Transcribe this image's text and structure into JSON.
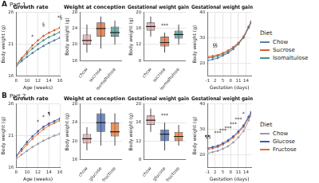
{
  "rows": [
    {
      "label": "A",
      "title": "Part 1",
      "legend_title": "Diet"
    },
    {
      "label": "B",
      "title": "Part 2",
      "legend_title": "Diet"
    }
  ],
  "chart_data": [
    {
      "type": "line",
      "title": "Growth rate",
      "x_label": "Age (weeks)",
      "y_label": "Body weight (g)",
      "x": [
        8,
        9,
        10,
        11,
        12,
        13,
        14,
        15,
        16
      ],
      "xlim": [
        8,
        16
      ],
      "xticks": [
        8,
        10,
        12,
        14,
        16
      ],
      "ylim": [
        16,
        26
      ],
      "yticks": [
        16,
        21,
        26
      ],
      "grid": true,
      "series": [
        {
          "name": "Chow",
          "color": "#5b7fa0",
          "values": [
            17.5,
            18.3,
            19,
            19.6,
            20.2,
            20.7,
            21.2,
            21.6,
            22
          ]
        },
        {
          "name": "Sucrose",
          "color": "#d9622b",
          "values": [
            17.8,
            18.8,
            19.8,
            20.8,
            21.6,
            22.3,
            22.8,
            23.2,
            23.6
          ]
        },
        {
          "name": "Isomaltulose",
          "color": "#4a8f8a",
          "values": [
            17.6,
            18.6,
            19.5,
            20.3,
            21,
            21.6,
            22.1,
            22.5,
            22.9
          ]
        }
      ],
      "annotations": [
        {
          "x": 11,
          "y": 21.8,
          "text": "*"
        },
        {
          "x": 13,
          "y": 23.6,
          "text": "§"
        },
        {
          "x": 16,
          "y": 24.8,
          "text": "*§"
        }
      ]
    },
    {
      "type": "box",
      "title": "Weight at conception",
      "y_label": "Body weight (g)",
      "categories": [
        "chow",
        "sucrose",
        "isomaltulose"
      ],
      "colors": [
        "#e3a3a8",
        "#d9622b",
        "#4a8f8a"
      ],
      "ylim": [
        16,
        28
      ],
      "yticks": [
        16,
        20,
        24,
        28
      ],
      "grid": true,
      "boxes": [
        {
          "min": 18,
          "q1": 20,
          "median": 21,
          "q3": 22.5,
          "max": 25
        },
        {
          "min": 19,
          "q1": 22,
          "median": 24,
          "q3": 25.5,
          "max": 27
        },
        {
          "min": 20,
          "q1": 22,
          "median": 23,
          "q3": 24.5,
          "max": 26
        }
      ]
    },
    {
      "type": "box",
      "title": "Gestational weight gain",
      "y_label": "Body weight (g)",
      "categories": [
        "chow",
        "sucrose",
        "isomaltulose"
      ],
      "colors": [
        "#e3a3a8",
        "#d9622b",
        "#4a8f8a"
      ],
      "ylim": [
        8,
        20
      ],
      "yticks": [
        8,
        12,
        16,
        20
      ],
      "grid": true,
      "boxes": [
        {
          "min": 14,
          "q1": 15.5,
          "median": 16.5,
          "q3": 17.5,
          "max": 19
        },
        {
          "min": 10,
          "q1": 11.5,
          "median": 12.5,
          "q3": 14,
          "max": 15
        },
        {
          "min": 12,
          "q1": 13.5,
          "median": 14.5,
          "q3": 15.5,
          "max": 17
        }
      ],
      "annotations": [
        {
          "x": "sucrose",
          "y": 16,
          "text": "***"
        }
      ]
    },
    {
      "type": "line",
      "title": "Gestational weight gain",
      "x_label": "Gestation (days)",
      "y_label": "Body weight (g)",
      "x": [
        -1,
        1,
        3,
        5,
        7,
        9,
        11,
        13,
        15,
        16
      ],
      "xlim": [
        -1,
        16
      ],
      "xticks": [
        -1,
        2,
        5,
        8,
        11,
        14
      ],
      "ylim": [
        15,
        40
      ],
      "yticks": [
        20,
        30,
        40
      ],
      "grid": true,
      "legend": "right",
      "series": [
        {
          "name": "Chow",
          "color": "#5b7fa0",
          "values": [
            21,
            21.5,
            22,
            23,
            24,
            25.5,
            27.5,
            30,
            34,
            36
          ]
        },
        {
          "name": "Sucrose",
          "color": "#d9622b",
          "values": [
            22.5,
            22.8,
            23.2,
            24,
            25,
            26.3,
            28,
            30.5,
            34.5,
            36.5
          ]
        },
        {
          "name": "Isomaltulose",
          "color": "#4a8f8a",
          "values": [
            22,
            22.3,
            22.8,
            23.5,
            24.5,
            26,
            27.8,
            30.3,
            34.2,
            36.2
          ]
        }
      ],
      "annotations": [
        {
          "x": 2,
          "y": 26,
          "text": "§§"
        }
      ]
    },
    {
      "type": "line",
      "title": "Growth rate",
      "x_label": "Age (weeks)",
      "y_label": "Body weight (g)",
      "x": [
        8,
        9,
        10,
        11,
        12,
        13,
        14,
        15,
        16
      ],
      "xlim": [
        8,
        16
      ],
      "xticks": [
        8,
        10,
        12,
        14,
        16
      ],
      "ylim": [
        16,
        26
      ],
      "yticks": [
        16,
        21,
        26
      ],
      "grid": true,
      "series": [
        {
          "name": "Chow",
          "color": "#9a9aae",
          "values": [
            17.3,
            18,
            18.6,
            19.2,
            19.7,
            20.2,
            20.6,
            21,
            21.3
          ]
        },
        {
          "name": "Glucose",
          "color": "#3a5fa8",
          "values": [
            17.8,
            18.9,
            20,
            20.9,
            21.7,
            22.4,
            22.9,
            23.3,
            23.7
          ]
        },
        {
          "name": "Fructose",
          "color": "#e0702e",
          "values": [
            17.6,
            18.6,
            19.6,
            20.5,
            21.3,
            22,
            22.6,
            23,
            23.4
          ]
        }
      ],
      "annotations": [
        {
          "x": 12,
          "y": 22.8,
          "text": "*"
        },
        {
          "x": 13,
          "y": 23.5,
          "text": "*"
        },
        {
          "x": 14,
          "y": 24,
          "text": "¶"
        }
      ]
    },
    {
      "type": "box",
      "title": "Weight at conception",
      "y_label": "Body weight (g)",
      "categories": [
        "chow",
        "glucose",
        "fructose"
      ],
      "colors": [
        "#e3a3a8",
        "#3a5fa8",
        "#e0702e"
      ],
      "ylim": [
        16,
        28
      ],
      "yticks": [
        16,
        20,
        24,
        28
      ],
      "grid": true,
      "boxes": [
        {
          "min": 18,
          "q1": 19.5,
          "median": 20.5,
          "q3": 21.5,
          "max": 23
        },
        {
          "min": 19,
          "q1": 22,
          "median": 24,
          "q3": 26,
          "max": 27
        },
        {
          "min": 19,
          "q1": 21,
          "median": 22,
          "q3": 24,
          "max": 26
        }
      ]
    },
    {
      "type": "box",
      "title": "Gestational weight gain",
      "y_label": "Body weight (g)",
      "categories": [
        "chow",
        "glucose",
        "fructose"
      ],
      "colors": [
        "#e3a3a8",
        "#3a5fa8",
        "#e0702e"
      ],
      "ylim": [
        8,
        20
      ],
      "yticks": [
        8,
        12,
        16,
        20
      ],
      "grid": true,
      "boxes": [
        {
          "min": 14,
          "q1": 15.5,
          "median": 16.5,
          "q3": 17.5,
          "max": 19
        },
        {
          "min": 10,
          "q1": 12,
          "median": 13.5,
          "q3": 14.5,
          "max": 16
        },
        {
          "min": 11,
          "q1": 12,
          "median": 13,
          "q3": 14,
          "max": 15.5
        }
      ],
      "annotations": [
        {
          "x": "glucose",
          "y": 17,
          "text": "***"
        }
      ]
    },
    {
      "type": "line",
      "title": "Gestational weight gain",
      "x_label": "Gestation (days)",
      "y_label": "Body weight (g)",
      "x": [
        -1,
        1,
        3,
        5,
        7,
        9,
        11,
        13,
        15,
        16
      ],
      "xlim": [
        -1,
        16
      ],
      "xticks": [
        -1,
        2,
        5,
        8,
        11,
        14
      ],
      "ylim": [
        15,
        40
      ],
      "yticks": [
        20,
        30,
        40
      ],
      "grid": true,
      "legend": "right",
      "series": [
        {
          "name": "Chow",
          "color": "#9a9aae",
          "values": [
            20.5,
            21,
            21.5,
            22.3,
            23.3,
            24.8,
            26.8,
            29.3,
            33.5,
            35.5
          ]
        },
        {
          "name": "Glucose",
          "color": "#3a5fa8",
          "values": [
            22.5,
            23,
            23.5,
            24.5,
            25.7,
            27.2,
            29.2,
            31.5,
            35,
            36.8
          ]
        },
        {
          "name": "Fructose",
          "color": "#e0702e",
          "values": [
            22,
            22.5,
            23,
            24,
            25.2,
            26.7,
            28.6,
            31,
            34.6,
            36.4
          ]
        }
      ],
      "annotations": [
        {
          "x": -1,
          "y": 26,
          "text": "¶¶"
        },
        {
          "x": 3,
          "y": 27.5,
          "text": "***"
        },
        {
          "x": 5,
          "y": 28.5,
          "text": "***"
        },
        {
          "x": 7,
          "y": 29.5,
          "text": "***"
        },
        {
          "x": 9,
          "y": 31,
          "text": "***"
        },
        {
          "x": 11,
          "y": 33,
          "text": "***"
        },
        {
          "x": 13,
          "y": 35,
          "text": "*"
        }
      ]
    }
  ]
}
